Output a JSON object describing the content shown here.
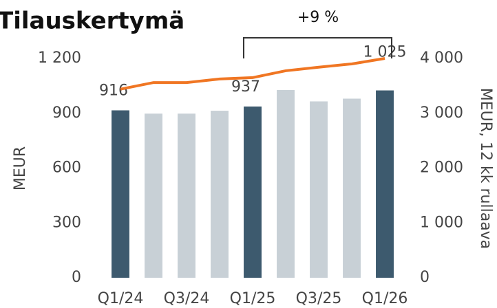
{
  "chart_data": {
    "type": "bar-line",
    "title": "Tilauskertymä",
    "annotation": "+9 %",
    "y_label": "MEUR",
    "y2_label": "MEUR, 12 kk rullaava",
    "categories": [
      "Q1/24",
      null,
      "Q3/24",
      null,
      "Q1/25",
      null,
      "Q3/25",
      null,
      "Q1/26"
    ],
    "series": [
      {
        "type": "bar",
        "values": [
          916,
          898,
          898,
          914,
          937,
          1027,
          965,
          980,
          1025
        ],
        "value_labels": [
          "916",
          null,
          null,
          null,
          "937",
          null,
          null,
          null,
          "1 025"
        ],
        "colors": [
          "#3d5a6e",
          "#c8d0d6",
          "#c8d0d6",
          "#c8d0d6",
          "#3d5a6e",
          "#c8d0d6",
          "#c8d0d6",
          "#c8d0d6",
          "#3d5a6e"
        ]
      },
      {
        "type": "line",
        "axis": "y2",
        "color": "#f07623",
        "values": [
          3440,
          3560,
          3560,
          3625,
          3650,
          3775,
          3840,
          3900,
          4000
        ]
      }
    ],
    "ylim": [
      0,
      1200
    ],
    "yticks": [
      0,
      300,
      600,
      900,
      {
        "value": 1200,
        "label": "1 200"
      }
    ],
    "y2lim": [
      0,
      4000
    ],
    "y2ticks": [
      0,
      {
        "value": 1000,
        "label": "1 000"
      },
      {
        "value": 2000,
        "label": "2 000"
      },
      {
        "value": 3000,
        "label": "3 000"
      },
      {
        "value": 4000,
        "label": "4 000"
      }
    ]
  }
}
